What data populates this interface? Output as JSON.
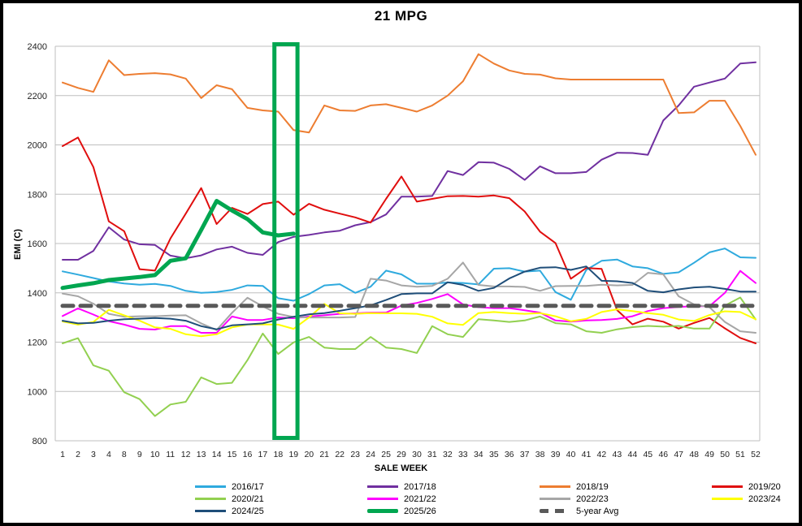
{
  "title": "21 MPG",
  "axes": {
    "x_label": "SALE WEEK",
    "y_label": "EMI (C)",
    "y_min": 800,
    "y_max": 2400,
    "y_step": 200,
    "y_ticks": [
      2400,
      2200,
      2000,
      1800,
      1600,
      1400,
      1200,
      1000,
      800
    ]
  },
  "highlight": {
    "description": "green-box-around-weeks-18-19",
    "from_index": 14,
    "to_index": 15,
    "color": "#00A650"
  },
  "colors": {
    "background": "#FFFFFF",
    "gridline": "#BFBFBF",
    "axis_text": "#1F1F1F",
    "frame": "#000000"
  },
  "legend": {
    "items": [
      {
        "label": "2016/17",
        "color": "#2FAADE",
        "style": "line"
      },
      {
        "label": "2017/18",
        "color": "#7030A0",
        "style": "line"
      },
      {
        "label": "2018/19",
        "color": "#ED7D31",
        "style": "line"
      },
      {
        "label": "2019/20",
        "color": "#E00E0E",
        "style": "line"
      },
      {
        "label": "2020/21",
        "color": "#92D050",
        "style": "line"
      },
      {
        "label": "2021/22",
        "color": "#FF00FF",
        "style": "line"
      },
      {
        "label": "2022/23",
        "color": "#A6A6A6",
        "style": "line"
      },
      {
        "label": "2023/24",
        "color": "#FFFF00",
        "style": "line"
      },
      {
        "label": "2024/25",
        "color": "#1F4E79",
        "style": "line"
      },
      {
        "label": "2025/26",
        "color": "#00A650",
        "style": "thick"
      },
      {
        "label": "5-year Avg",
        "color": "#595959",
        "style": "dash"
      }
    ]
  },
  "chart_data": {
    "type": "line",
    "title": "21 MPG",
    "xlabel": "SALE WEEK",
    "ylabel": "EMI (C)",
    "ylim": [
      800,
      2400
    ],
    "grid": true,
    "legend_position": "bottom",
    "categories": [
      "1",
      "2",
      "3",
      "4",
      "8",
      "9",
      "10",
      "11",
      "12",
      "13",
      "14",
      "15",
      "16",
      "17",
      "18",
      "19",
      "20",
      "21",
      "22",
      "23",
      "24",
      "25",
      "29",
      "30",
      "31",
      "32",
      "33",
      "34",
      "35",
      "36",
      "37",
      "38",
      "39",
      "40",
      "41",
      "42",
      "43",
      "44",
      "45",
      "46",
      "47",
      "48",
      "49",
      "50",
      "51",
      "52"
    ],
    "series": [
      {
        "name": "2016/17",
        "color": "#2FAADE",
        "width": 2,
        "values": [
          1487,
          1474,
          1460,
          1446,
          1438,
          1433,
          1436,
          1428,
          1408,
          1400,
          1403,
          1412,
          1430,
          1428,
          1378,
          1368,
          1395,
          1430,
          1435,
          1400,
          1425,
          1490,
          1475,
          1437,
          1437,
          1442,
          1440,
          1434,
          1498,
          1500,
          1486,
          1490,
          1403,
          1372,
          1493,
          1530,
          1535,
          1507,
          1500,
          1477,
          1483,
          1522,
          1564,
          1580,
          1544,
          1542
        ]
      },
      {
        "name": "2017/18",
        "color": "#7030A0",
        "width": 2,
        "values": [
          1534,
          1534,
          1570,
          1666,
          1616,
          1597,
          1594,
          1551,
          1540,
          1552,
          1576,
          1587,
          1562,
          1554,
          1606,
          1627,
          1635,
          1645,
          1652,
          1674,
          1687,
          1718,
          1790,
          1790,
          1793,
          1894,
          1878,
          1930,
          1928,
          1903,
          1858,
          1913,
          1885,
          1885,
          1890,
          1940,
          1968,
          1967,
          1960,
          2099,
          2160,
          2236,
          2253,
          2269,
          2330,
          2335
        ]
      },
      {
        "name": "2018/19",
        "color": "#ED7D31",
        "width": 2,
        "values": [
          2253,
          2231,
          2215,
          2343,
          2283,
          2288,
          2291,
          2286,
          2269,
          2190,
          2242,
          2226,
          2150,
          2140,
          2135,
          2060,
          2050,
          2160,
          2140,
          2138,
          2160,
          2165,
          2150,
          2135,
          2160,
          2200,
          2258,
          2368,
          2330,
          2302,
          2288,
          2285,
          2270,
          2265,
          2265,
          2265,
          2265,
          2265,
          2265,
          2265,
          2129,
          2132,
          2179,
          2179,
          2077,
          1960
        ]
      },
      {
        "name": "2019/20",
        "color": "#E00E0E",
        "width": 2,
        "values": [
          1995,
          2030,
          1910,
          1690,
          1650,
          1496,
          1490,
          1620,
          1721,
          1825,
          1679,
          1745,
          1720,
          1760,
          1770,
          1717,
          1761,
          1737,
          1721,
          1706,
          1685,
          1781,
          1872,
          1770,
          1781,
          1792,
          1793,
          1790,
          1795,
          1784,
          1730,
          1648,
          1602,
          1457,
          1501,
          1497,
          1330,
          1272,
          1295,
          1283,
          1255,
          1278,
          1298,
          1256,
          1217,
          1195
        ]
      },
      {
        "name": "2020/21",
        "color": "#92D050",
        "width": 2,
        "values": [
          1195,
          1216,
          1106,
          1084,
          997,
          969,
          900,
          947,
          958,
          1057,
          1030,
          1035,
          1127,
          1235,
          1152,
          1199,
          1221,
          1178,
          1172,
          1172,
          1221,
          1178,
          1172,
          1156,
          1265,
          1232,
          1221,
          1293,
          1288,
          1282,
          1288,
          1304,
          1277,
          1272,
          1244,
          1238,
          1252,
          1261,
          1266,
          1263,
          1266,
          1255,
          1255,
          1348,
          1381,
          1292
        ]
      },
      {
        "name": "2021/22",
        "color": "#FF00FF",
        "width": 2,
        "values": [
          1306,
          1337,
          1312,
          1285,
          1271,
          1254,
          1251,
          1265,
          1265,
          1238,
          1238,
          1304,
          1290,
          1290,
          1300,
          1297,
          1304,
          1309,
          1315,
          1317,
          1320,
          1320,
          1348,
          1359,
          1375,
          1395,
          1353,
          1342,
          1338,
          1338,
          1329,
          1320,
          1288,
          1283,
          1288,
          1290,
          1294,
          1305,
          1326,
          1338,
          1343,
          1346,
          1346,
          1400,
          1489,
          1440
        ]
      },
      {
        "name": "2022/23",
        "color": "#A6A6A6",
        "width": 2,
        "values": [
          1397,
          1386,
          1356,
          1315,
          1303,
          1305,
          1305,
          1308,
          1309,
          1276,
          1249,
          1319,
          1380,
          1345,
          1315,
          1302,
          1300,
          1300,
          1300,
          1302,
          1457,
          1450,
          1430,
          1425,
          1428,
          1457,
          1523,
          1432,
          1426,
          1426,
          1424,
          1408,
          1427,
          1428,
          1428,
          1433,
          1430,
          1432,
          1481,
          1475,
          1386,
          1353,
          1342,
          1282,
          1244,
          1238
        ]
      },
      {
        "name": "2023/24",
        "color": "#FFFF00",
        "width": 2,
        "values": [
          1284,
          1271,
          1282,
          1331,
          1309,
          1287,
          1260,
          1254,
          1232,
          1224,
          1232,
          1260,
          1271,
          1272,
          1271,
          1254,
          1300,
          1355,
          1317,
          1315,
          1318,
          1317,
          1317,
          1315,
          1303,
          1276,
          1270,
          1318,
          1322,
          1318,
          1315,
          1318,
          1305,
          1285,
          1294,
          1322,
          1333,
          1326,
          1318,
          1311,
          1292,
          1286,
          1310,
          1325,
          1322,
          1293
        ]
      },
      {
        "name": "2024/25",
        "color": "#1F4E79",
        "width": 2,
        "values": [
          1287,
          1276,
          1278,
          1287,
          1293,
          1295,
          1298,
          1295,
          1287,
          1265,
          1252,
          1268,
          1272,
          1276,
          1292,
          1303,
          1313,
          1318,
          1327,
          1338,
          1349,
          1371,
          1395,
          1398,
          1398,
          1443,
          1432,
          1408,
          1420,
          1458,
          1486,
          1502,
          1504,
          1493,
          1507,
          1449,
          1447,
          1440,
          1408,
          1402,
          1414,
          1422,
          1425,
          1416,
          1405,
          1405
        ]
      },
      {
        "name": "2025/26",
        "color": "#00A650",
        "width": 5,
        "values": [
          1420,
          1430,
          1439,
          1452,
          1458,
          1464,
          1472,
          1530,
          1540,
          1655,
          1773,
          1734,
          1699,
          1645,
          1633,
          1640,
          null,
          null,
          null,
          null,
          null,
          null,
          null,
          null,
          null,
          null,
          null,
          null,
          null,
          null,
          null,
          null,
          null,
          null,
          null,
          null,
          null,
          null,
          null,
          null,
          null,
          null,
          null,
          null,
          null,
          null
        ]
      },
      {
        "name": "5-year Avg",
        "color": "#595959",
        "width": 5,
        "dash": "13,9",
        "values": [
          1347,
          1347,
          1347,
          1347,
          1347,
          1347,
          1347,
          1347,
          1347,
          1347,
          1347,
          1347,
          1347,
          1347,
          1347,
          1347,
          1347,
          1347,
          1347,
          1347,
          1347,
          1347,
          1347,
          1347,
          1347,
          1347,
          1347,
          1347,
          1347,
          1347,
          1347,
          1347,
          1347,
          1347,
          1347,
          1347,
          1347,
          1347,
          1347,
          1347,
          1347,
          1347,
          1347,
          1347,
          1347,
          1347
        ]
      }
    ]
  }
}
